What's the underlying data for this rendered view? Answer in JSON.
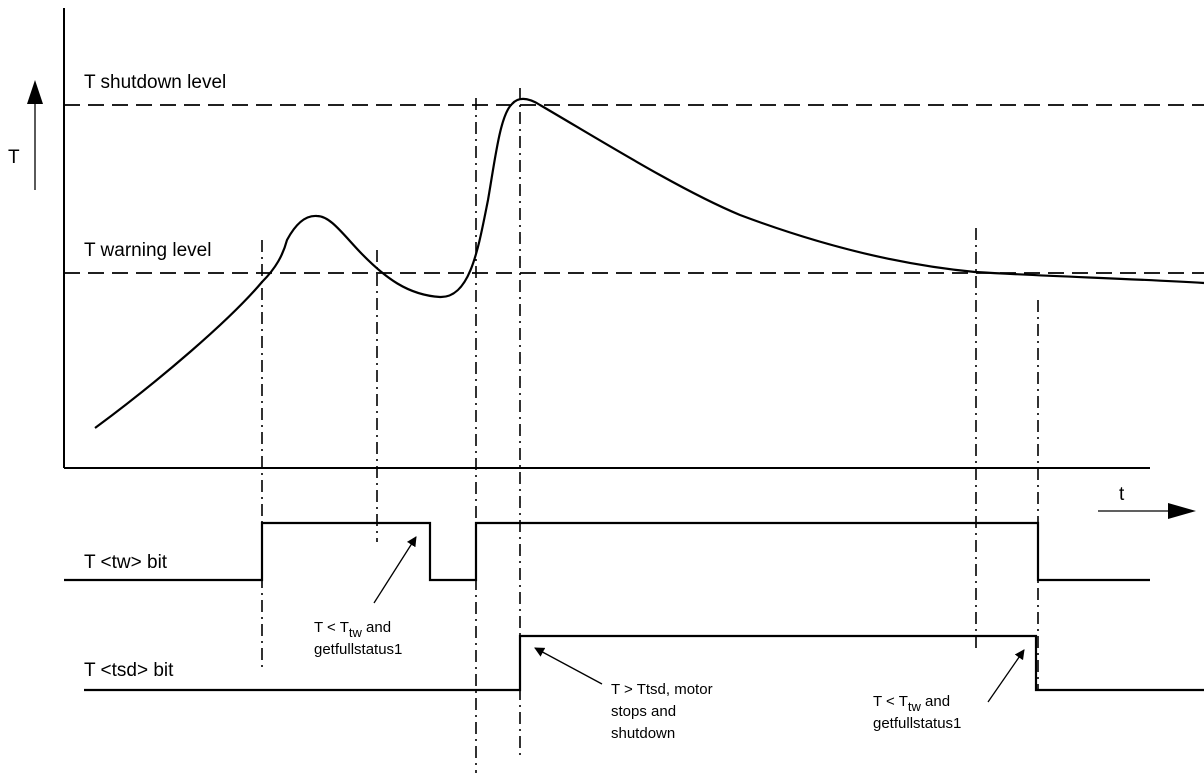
{
  "axes": {
    "y_label": "T",
    "x_label": "t"
  },
  "levels": {
    "shutdown_label": "T shutdown level",
    "warning_label": "T warning level"
  },
  "signals": {
    "tw_bit_label": "T <tw> bit",
    "tsd_bit_label": "T <tsd> bit"
  },
  "annotations": {
    "tw_clear_left": {
      "prefix": "T < T",
      "subscript": "tw",
      "suffix": " and",
      "line2": "getfullstatus1"
    },
    "tsd_trigger": {
      "line1": "T > Ttsd, motor",
      "line2": "stops and",
      "line3": "shutdown"
    },
    "tw_clear_right": {
      "prefix": "T < T",
      "subscript": "tw",
      "suffix": " and",
      "line2": "getfullstatus1"
    }
  }
}
